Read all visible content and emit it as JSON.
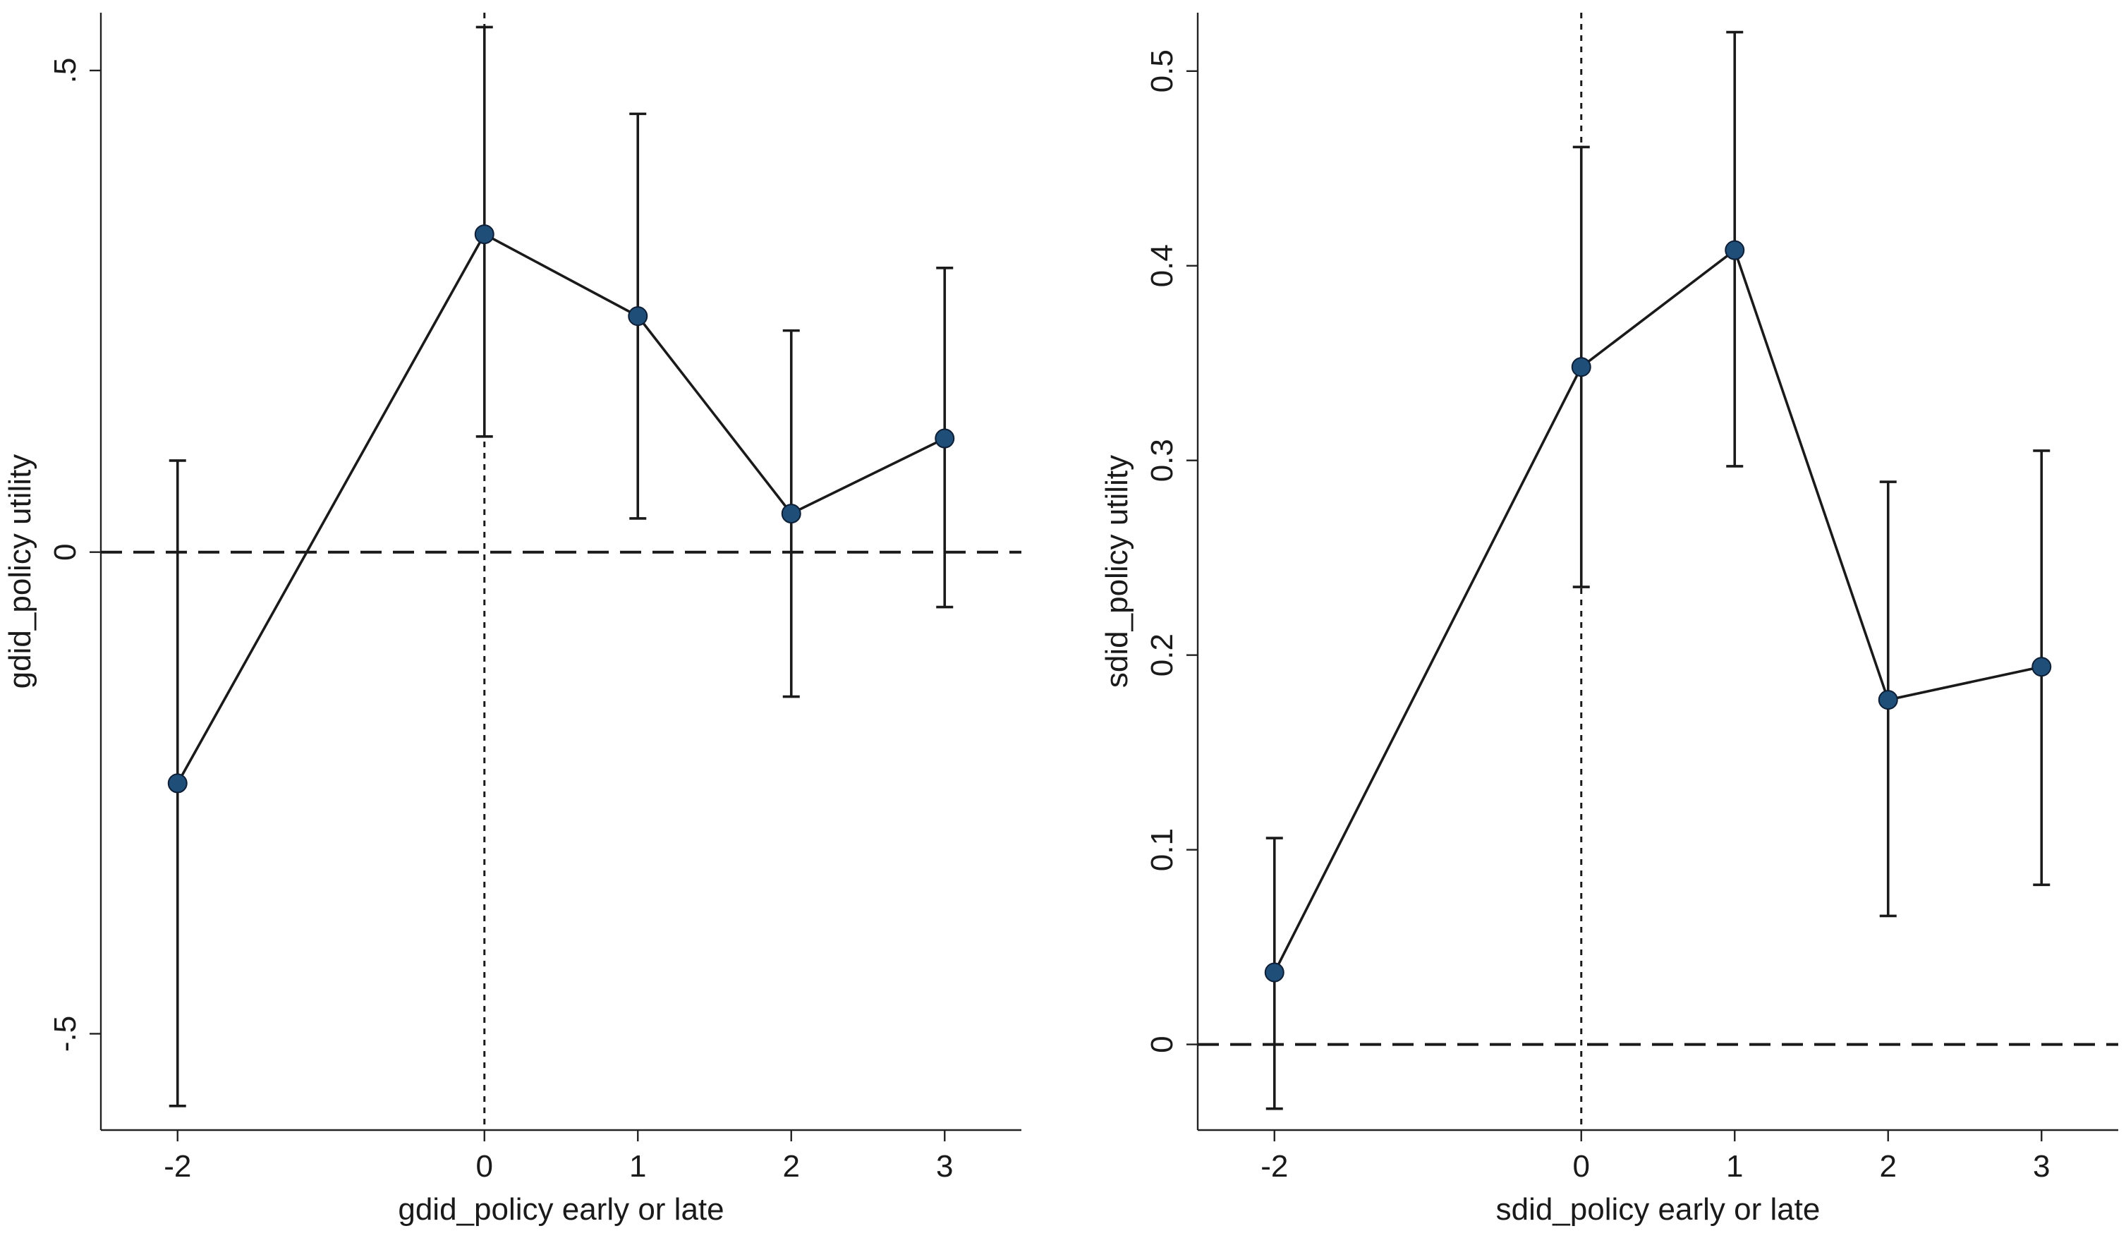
{
  "colors": {
    "marker": "#1f4e79",
    "line": "#1a1a1a",
    "axis": "#222222",
    "background": "#ffffff"
  },
  "chart_data": [
    {
      "type": "line",
      "title": "",
      "xlabel": "gdid_policy early or late",
      "ylabel": "gdid_policy utility",
      "xlim": [
        -2.5,
        3.5
      ],
      "ylim": [
        -0.6,
        0.56
      ],
      "xticks": [
        -2,
        0,
        1,
        2,
        3
      ],
      "xtick_labels": [
        "-2",
        "0",
        "1",
        "2",
        "3"
      ],
      "yticks": [
        -0.5,
        0,
        0.5
      ],
      "ytick_labels": [
        "-.5",
        "0",
        ".5"
      ],
      "ref_hline": 0,
      "ref_vline": 0,
      "grid": false,
      "legend": "none",
      "series": [
        {
          "name": "gdid_policy utility",
          "x": [
            -2,
            0,
            1,
            2,
            3
          ],
          "y": [
            -0.24,
            0.33,
            0.245,
            0.04,
            0.118
          ],
          "ci_low": [
            -0.575,
            0.12,
            0.035,
            -0.15,
            -0.057
          ],
          "ci_high": [
            0.095,
            0.545,
            0.455,
            0.23,
            0.295
          ]
        }
      ]
    },
    {
      "type": "line",
      "title": "",
      "xlabel": "sdid_policy early or late",
      "ylabel": "sdid_policy utility",
      "xlim": [
        -2.5,
        3.5
      ],
      "ylim": [
        -0.044,
        0.53
      ],
      "xticks": [
        -2,
        0,
        1,
        2,
        3
      ],
      "xtick_labels": [
        "-2",
        "0",
        "1",
        "2",
        "3"
      ],
      "yticks": [
        0,
        0.1,
        0.2,
        0.3,
        0.4,
        0.5
      ],
      "ytick_labels": [
        "0",
        "0.1",
        "0.2",
        "0.3",
        "0.4",
        "0.5"
      ],
      "ref_hline": 0,
      "ref_vline": 0,
      "grid": false,
      "legend": "none",
      "series": [
        {
          "name": "sdid_policy utility",
          "x": [
            -2,
            0,
            1,
            2,
            3
          ],
          "y": [
            0.037,
            0.348,
            0.408,
            0.177,
            0.194
          ],
          "ci_low": [
            -0.033,
            0.235,
            0.297,
            0.066,
            0.082
          ],
          "ci_high": [
            0.106,
            0.461,
            0.52,
            0.289,
            0.305
          ]
        }
      ]
    }
  ]
}
